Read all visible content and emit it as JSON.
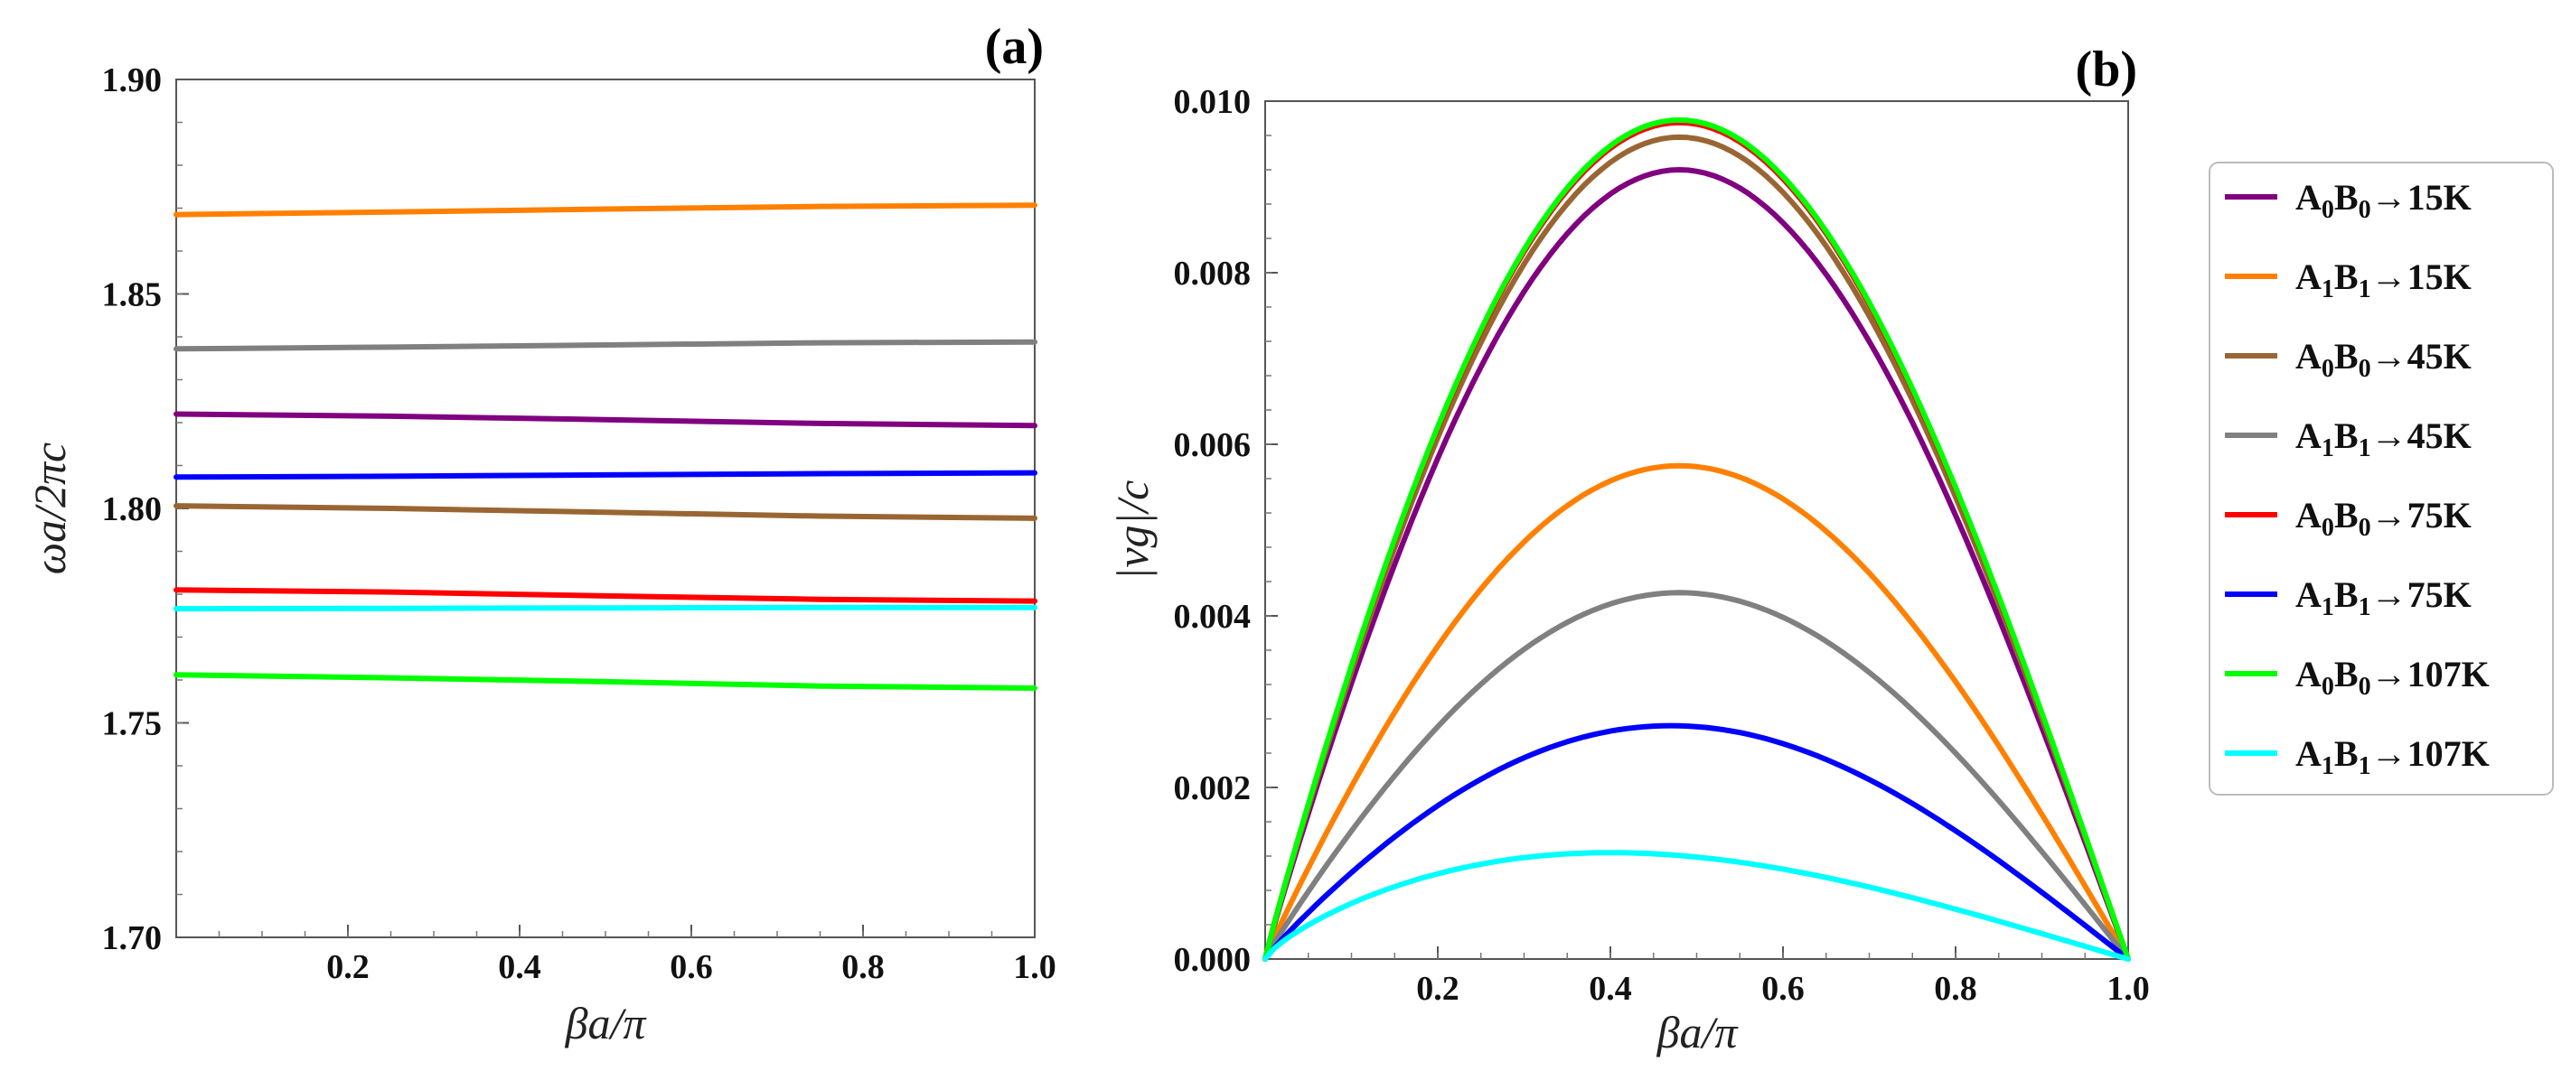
{
  "chart_data": [
    {
      "type": "line",
      "panel_label": "(a)",
      "xlabel": "βa/π",
      "ylabel": "ωa/2πc",
      "xlim": [
        0.0,
        1.0
      ],
      "ylim": [
        1.7,
        1.9
      ],
      "x_ticks": [
        "0.2",
        "0.4",
        "0.6",
        "0.8",
        "1.0"
      ],
      "y_ticks": [
        "1.70",
        "1.75",
        "1.80",
        "1.85",
        "1.90"
      ],
      "x": [
        0.0,
        0.25,
        0.5,
        0.75,
        1.0
      ],
      "series": [
        {
          "name": "A0B0→15K",
          "color": "#800080",
          "values": [
            1.822,
            1.8215,
            1.8207,
            1.8198,
            1.8193
          ]
        },
        {
          "name": "A1B1→15K",
          "color": "#ff8000",
          "values": [
            1.8685,
            1.8691,
            1.8698,
            1.8704,
            1.8707
          ]
        },
        {
          "name": "A0B0→45K",
          "color": "#996633",
          "values": [
            1.8006,
            1.8,
            1.7991,
            1.7982,
            1.7977
          ]
        },
        {
          "name": "A1B1→45K",
          "color": "#808080",
          "values": [
            1.8372,
            1.8376,
            1.8381,
            1.8386,
            1.8388
          ]
        },
        {
          "name": "A0B0→75K",
          "color": "#ff0000",
          "values": [
            1.781,
            1.7805,
            1.7796,
            1.7788,
            1.7784
          ]
        },
        {
          "name": "A1B1→75K",
          "color": "#0000ff",
          "values": [
            1.8073,
            1.8075,
            1.8078,
            1.8081,
            1.8083
          ]
        },
        {
          "name": "A0B0→107K",
          "color": "#00ff00",
          "values": [
            1.7612,
            1.7605,
            1.7596,
            1.7586,
            1.7581
          ]
        },
        {
          "name": "A1B1→107K",
          "color": "#00ffff",
          "values": [
            1.7766,
            1.7767,
            1.7768,
            1.7769,
            1.7769
          ]
        }
      ]
    },
    {
      "type": "line",
      "panel_label": "(b)",
      "xlabel": "βa/π",
      "ylabel": "|vg|/c",
      "xlim": [
        0.0,
        1.0
      ],
      "ylim": [
        0.0,
        0.01
      ],
      "x_ticks": [
        "0.2",
        "0.4",
        "0.6",
        "0.8",
        "1.0"
      ],
      "y_ticks": [
        "0.000",
        "0.002",
        "0.004",
        "0.006",
        "0.008",
        "0.010"
      ],
      "series": [
        {
          "name": "A0B0→15K",
          "color": "#800080",
          "peak": 0.0092,
          "peak_x": 0.48
        },
        {
          "name": "A1B1→15K",
          "color": "#ff8000",
          "peak": 0.00575,
          "peak_x": 0.48
        },
        {
          "name": "A0B0→45K",
          "color": "#996633",
          "peak": 0.00958,
          "peak_x": 0.48
        },
        {
          "name": "A1B1→45K",
          "color": "#808080",
          "peak": 0.00427,
          "peak_x": 0.48
        },
        {
          "name": "A0B0→75K",
          "color": "#ff0000",
          "peak": 0.00975,
          "peak_x": 0.48
        },
        {
          "name": "A1B1→75K",
          "color": "#0000ff",
          "peak": 0.00272,
          "peak_x": 0.47
        },
        {
          "name": "A0B0→107K",
          "color": "#00ff00",
          "peak": 0.00978,
          "peak_x": 0.48
        },
        {
          "name": "A1B1→107K",
          "color": "#00ffff",
          "peak": 0.00124,
          "peak_x": 0.4
        }
      ]
    }
  ],
  "legend": {
    "placement": "right",
    "items": [
      {
        "A": "A",
        "a_sub": "0",
        "B": "B",
        "b_sub": "0",
        "suffix": "→15K",
        "color": "#800080"
      },
      {
        "A": "A",
        "a_sub": "1",
        "B": "B",
        "b_sub": "1",
        "suffix": "→15K",
        "color": "#ff8000"
      },
      {
        "A": "A",
        "a_sub": "0",
        "B": "B",
        "b_sub": "0",
        "suffix": "→45K",
        "color": "#996633"
      },
      {
        "A": "A",
        "a_sub": "1",
        "B": "B",
        "b_sub": "1",
        "suffix": "→45K",
        "color": "#808080"
      },
      {
        "A": "A",
        "a_sub": "0",
        "B": "B",
        "b_sub": "0",
        "suffix": "→75K",
        "color": "#ff0000"
      },
      {
        "A": "A",
        "a_sub": "1",
        "B": "B",
        "b_sub": "1",
        "suffix": "→75K",
        "color": "#0000ff"
      },
      {
        "A": "A",
        "a_sub": "0",
        "B": "B",
        "b_sub": "0",
        "suffix": "→107K",
        "color": "#00ff00"
      },
      {
        "A": "A",
        "a_sub": "1",
        "B": "B",
        "b_sub": "1",
        "suffix": "→107K",
        "color": "#00ffff"
      }
    ]
  }
}
